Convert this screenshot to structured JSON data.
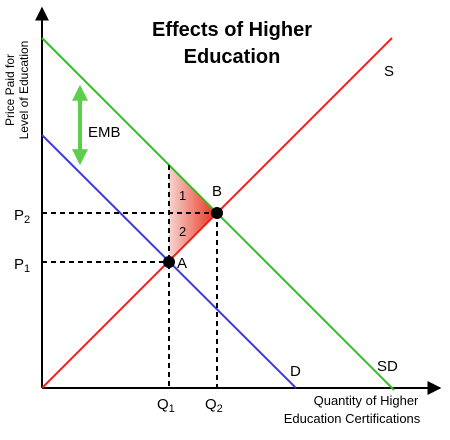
{
  "title": {
    "lines": [
      "Effects of Higher",
      "Education"
    ]
  },
  "y_axis_label": [
    "Price Paid for",
    "Level of Education"
  ],
  "x_axis_label": [
    "Quantity of Higher",
    "Education Certifications"
  ],
  "curves": {
    "supply": "S",
    "demand": "D",
    "social_demand": "SD"
  },
  "gap_label": "EMB",
  "points": {
    "a": "A",
    "b": "B"
  },
  "regions": [
    "1",
    "2"
  ],
  "price_labels": [
    {
      "main": "P",
      "sub": "2"
    },
    {
      "main": "P",
      "sub": "1"
    }
  ],
  "quantity_labels": [
    {
      "main": "Q",
      "sub": "1"
    },
    {
      "main": "Q",
      "sub": "2"
    }
  ]
}
